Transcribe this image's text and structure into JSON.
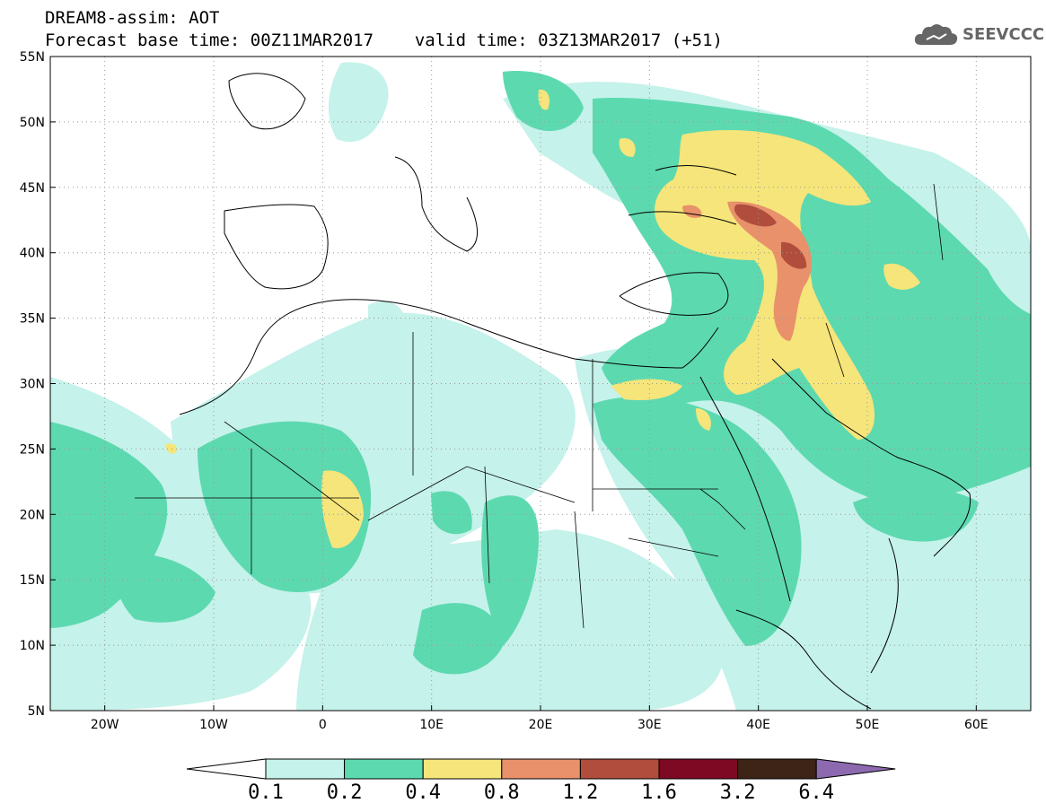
{
  "header": {
    "title": "DREAM8-assim: AOT",
    "base_time": "Forecast base time: 00Z11MAR2017",
    "valid_time": "valid time: 03Z13MAR2017 (+51)"
  },
  "logo": {
    "text": "SEEVCCC",
    "icon": "cloud-icon"
  },
  "map": {
    "lat_labels": [
      "55N",
      "50N",
      "45N",
      "40N",
      "35N",
      "30N",
      "25N",
      "20N",
      "15N",
      "10N",
      "5N"
    ],
    "lon_labels": [
      "20W",
      "10W",
      "0",
      "10E",
      "20E",
      "30E",
      "40E",
      "50E",
      "60E"
    ],
    "lon_range": [
      -25,
      65
    ],
    "lat_range": [
      5,
      55
    ],
    "gridlines": "dotted"
  },
  "colorbar": {
    "labels": [
      "0.1",
      "0.2",
      "0.4",
      "0.8",
      "1.2",
      "1.6",
      "3.2",
      "6.4"
    ],
    "colors": [
      "#c5f2ea",
      "#5dd9b0",
      "#f5e57a",
      "#e8916a",
      "#b04d3c",
      "#7d0a22",
      "#3d2416",
      "#8d6ab0"
    ]
  },
  "colors": {
    "aot_0_1": "#c5f2ea",
    "aot_0_2": "#5dd9b0",
    "aot_0_4": "#f5e57a",
    "aot_0_8": "#e8916a",
    "aot_1_2": "#b04d3c"
  }
}
